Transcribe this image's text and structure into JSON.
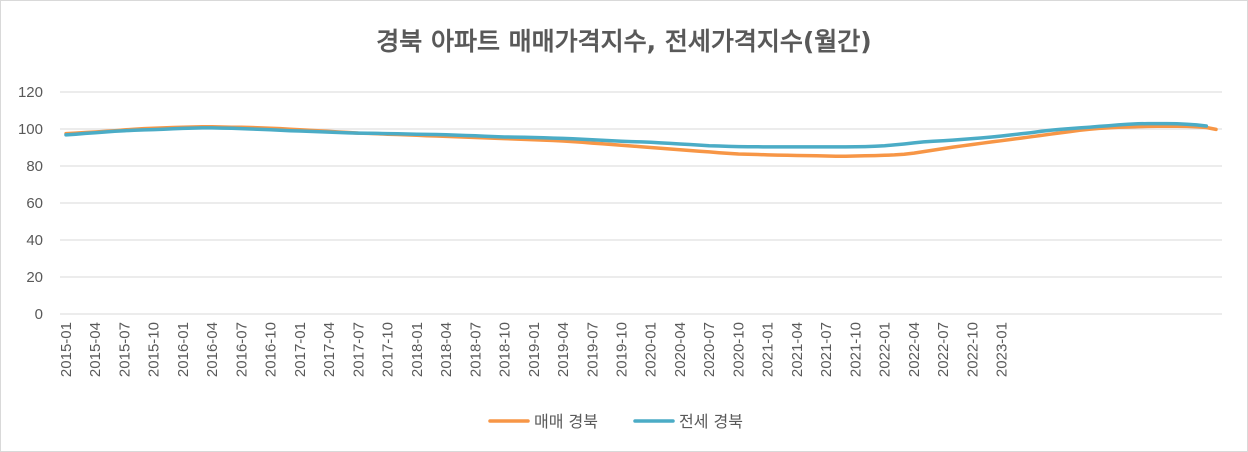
{
  "chart_data": {
    "type": "line",
    "title": "경북 아파트 매매가격지수, 전세가격지수(월간)",
    "xlabel": "",
    "ylabel": "",
    "ylim": [
      0,
      120
    ],
    "yticks": [
      "0",
      "20",
      "40",
      "60",
      "80",
      "100",
      "120"
    ],
    "grid": true,
    "legend_position": "bottom",
    "x_start": "2015-01",
    "x_end": "2023-01",
    "x_tick_labels": [
      "2015-01",
      "2015-04",
      "2015-07",
      "2015-10",
      "2016-01",
      "2016-04",
      "2016-07",
      "2016-10",
      "2017-01",
      "2017-04",
      "2017-07",
      "2017-10",
      "2018-01",
      "2018-04",
      "2018-07",
      "2018-10",
      "2019-01",
      "2019-04",
      "2019-07",
      "2019-10",
      "2020-01",
      "2020-04",
      "2020-07",
      "2020-10",
      "2021-01",
      "2021-04",
      "2021-07",
      "2021-10",
      "2022-01",
      "2022-04",
      "2022-07",
      "2022-10",
      "2023-01"
    ],
    "series": [
      {
        "name": "매매 경북",
        "color": "#F79646",
        "values": [
          97.5,
          97.8,
          98.1,
          98.4,
          98.7,
          99.1,
          99.5,
          99.9,
          100.2,
          100.4,
          100.6,
          100.8,
          101.0,
          101.1,
          101.2,
          101.2,
          101.1,
          101.0,
          100.9,
          100.8,
          100.6,
          100.4,
          100.2,
          99.9,
          99.6,
          99.3,
          99.0,
          98.7,
          98.4,
          98.1,
          97.8,
          97.6,
          97.4,
          97.2,
          97.0,
          96.8,
          96.6,
          96.4,
          96.2,
          96.0,
          95.8,
          95.6,
          95.4,
          95.2,
          95.0,
          94.8,
          94.6,
          94.4,
          94.2,
          94.0,
          93.8,
          93.5,
          93.2,
          92.8,
          92.4,
          92.0,
          91.6,
          91.2,
          90.8,
          90.4,
          90.0,
          89.6,
          89.2,
          88.8,
          88.4,
          88.0,
          87.6,
          87.2,
          86.8,
          86.5,
          86.3,
          86.2,
          86.0,
          85.9,
          85.8,
          85.7,
          85.6,
          85.5,
          85.4,
          85.3,
          85.3,
          85.4,
          85.5,
          85.6,
          85.8,
          86.0,
          86.4,
          87.0,
          87.8,
          88.6,
          89.4,
          90.2,
          90.9,
          91.6,
          92.3,
          93.0,
          93.7,
          94.4,
          95.1,
          95.8,
          96.5,
          97.2,
          97.9,
          98.6,
          99.3,
          99.9,
          100.3,
          100.6,
          100.9,
          101.1,
          101.3,
          101.4,
          101.5,
          101.5,
          101.5,
          101.4,
          101.2,
          100.8,
          99.8
        ]
      },
      {
        "name": "전세 경북",
        "color": "#4BACC6",
        "values": [
          96.8,
          97.2,
          97.6,
          98.0,
          98.4,
          98.8,
          99.1,
          99.3,
          99.5,
          99.7,
          99.9,
          100.1,
          100.3,
          100.5,
          100.6,
          100.6,
          100.5,
          100.4,
          100.2,
          100.0,
          99.8,
          99.6,
          99.3,
          99.1,
          98.9,
          98.7,
          98.5,
          98.3,
          98.1,
          97.9,
          97.8,
          97.7,
          97.6,
          97.5,
          97.4,
          97.3,
          97.2,
          97.1,
          97.0,
          96.9,
          96.7,
          96.5,
          96.3,
          96.1,
          95.9,
          95.7,
          95.6,
          95.5,
          95.4,
          95.3,
          95.1,
          94.9,
          94.7,
          94.5,
          94.2,
          93.9,
          93.6,
          93.4,
          93.2,
          93.0,
          92.8,
          92.5,
          92.2,
          91.9,
          91.6,
          91.3,
          91.0,
          90.8,
          90.6,
          90.5,
          90.4,
          90.4,
          90.3,
          90.3,
          90.3,
          90.3,
          90.3,
          90.3,
          90.3,
          90.3,
          90.3,
          90.4,
          90.5,
          90.7,
          91.0,
          91.4,
          91.9,
          92.5,
          93.0,
          93.4,
          93.7,
          94.0,
          94.4,
          94.8,
          95.2,
          95.7,
          96.2,
          96.8,
          97.4,
          98.0,
          98.7,
          99.3,
          99.8,
          100.2,
          100.6,
          101.0,
          101.4,
          101.8,
          102.2,
          102.6,
          102.8,
          102.9,
          102.9,
          102.9,
          102.8,
          102.6,
          102.2,
          101.6
        ]
      }
    ]
  }
}
